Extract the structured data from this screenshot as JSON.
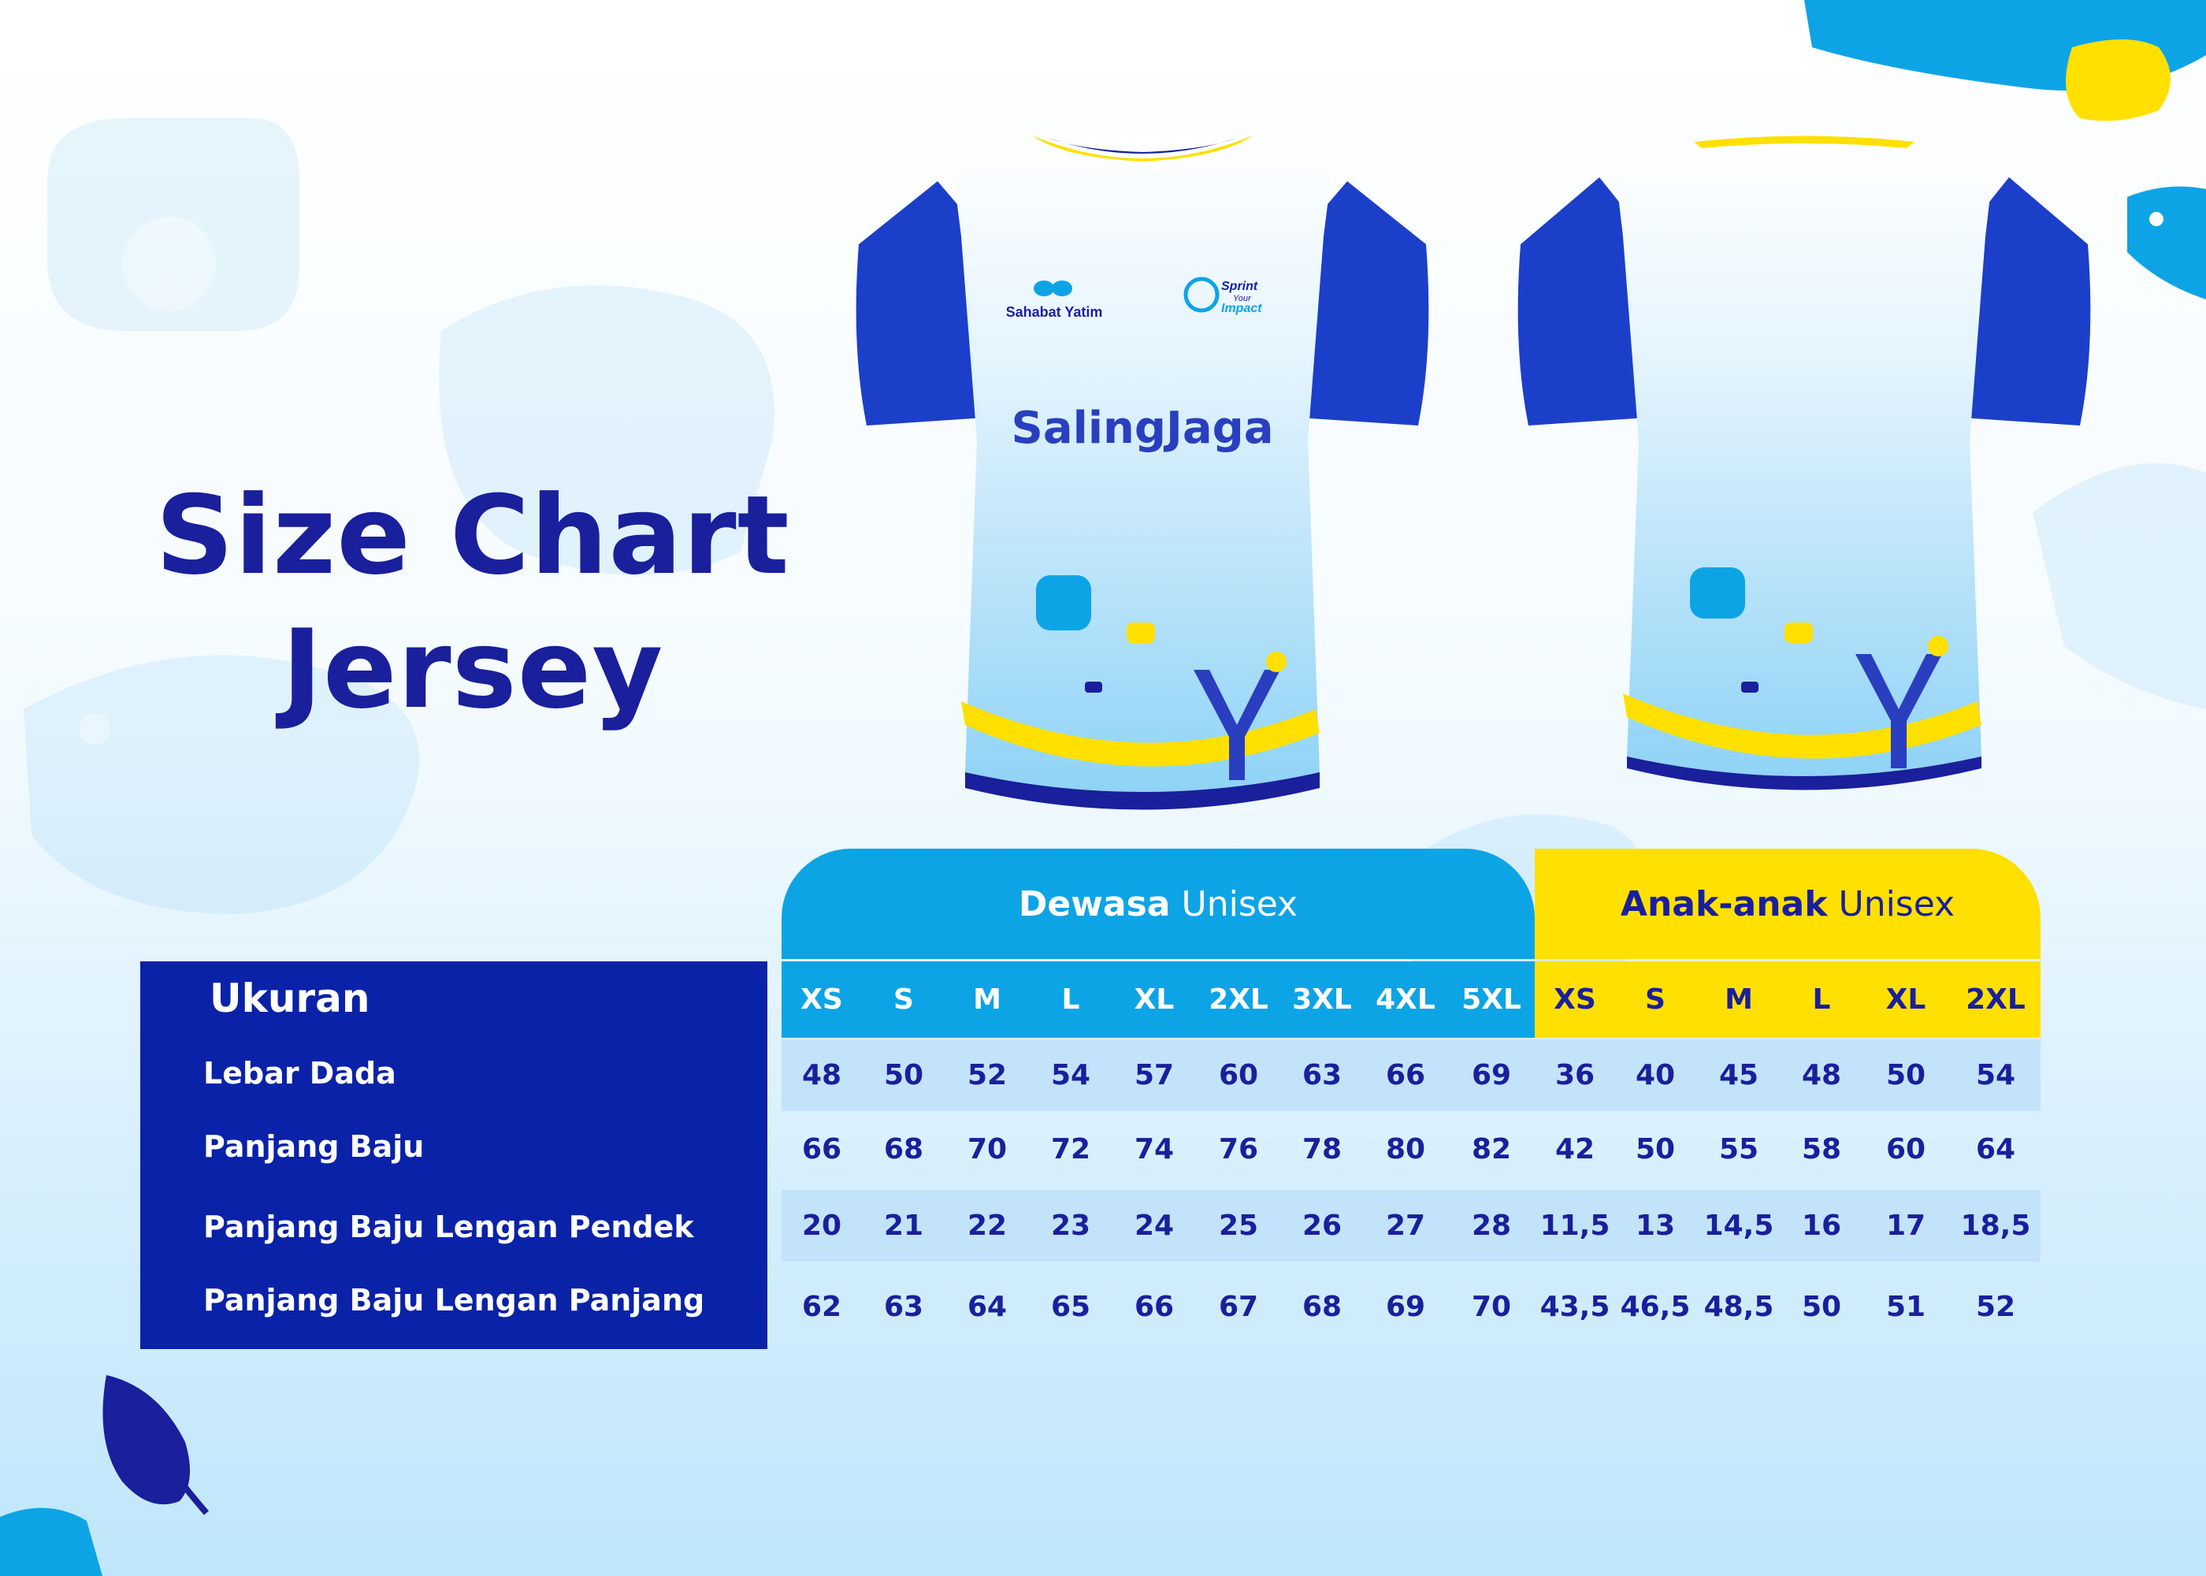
{
  "title": {
    "line1": "Size Chart",
    "line2": "Jersey"
  },
  "jersey": {
    "front_logo_left": "Sahabat Yatim",
    "front_logo_right_line1": "Sprint",
    "front_logo_right_line2": "Your",
    "front_logo_right_line3": "Impact",
    "front_text": "SalingJaga"
  },
  "table": {
    "adult_header": {
      "bold": "Dewasa",
      "rest": "Unisex"
    },
    "kids_header": {
      "bold": "Anak-anak",
      "rest": "Unisex"
    },
    "ukuran_label": "Ukuran",
    "adult_sizes": [
      "XS",
      "S",
      "M",
      "L",
      "XL",
      "2XL",
      "3XL",
      "4XL",
      "5XL"
    ],
    "kids_sizes": [
      "XS",
      "S",
      "M",
      "L",
      "XL",
      "2XL"
    ],
    "rows": [
      {
        "label": "Lebar Dada",
        "adult": [
          "48",
          "50",
          "52",
          "54",
          "57",
          "60",
          "63",
          "66",
          "69"
        ],
        "kids": [
          "36",
          "40",
          "45",
          "48",
          "50",
          "54"
        ]
      },
      {
        "label": "Panjang Baju",
        "adult": [
          "66",
          "68",
          "70",
          "72",
          "74",
          "76",
          "78",
          "80",
          "82"
        ],
        "kids": [
          "42",
          "50",
          "55",
          "58",
          "60",
          "64"
        ]
      },
      {
        "label": "Panjang Baju Lengan Pendek",
        "adult": [
          "20",
          "21",
          "22",
          "23",
          "24",
          "25",
          "26",
          "27",
          "28"
        ],
        "kids": [
          "11,5",
          "13",
          "14,5",
          "16",
          "17",
          "18,5"
        ]
      },
      {
        "label": "Panjang Baju Lengan Panjang",
        "adult": [
          "62",
          "63",
          "64",
          "65",
          "66",
          "67",
          "68",
          "69",
          "70"
        ],
        "kids": [
          "43,5",
          "46,5",
          "48,5",
          "50",
          "51",
          "52"
        ]
      }
    ]
  },
  "colors": {
    "navy": "#1a1f9c",
    "panel_blue": "#0a22a8",
    "sky": "#0da4e6",
    "yellow": "#ffe000",
    "row_shade": "#c3e3fb",
    "sleeve_blue": "#1b3fc9"
  }
}
